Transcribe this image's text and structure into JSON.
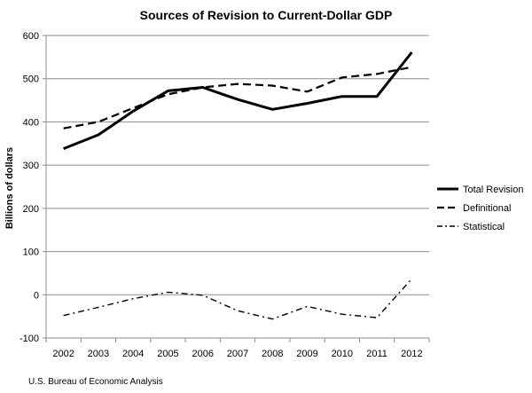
{
  "chart_data": {
    "type": "line",
    "title": "Sources of Revision to Current-Dollar GDP",
    "xlabel": "",
    "ylabel": "Billions of dollars",
    "ylim": [
      -100,
      600
    ],
    "yticks": [
      -100,
      0,
      100,
      200,
      300,
      400,
      500,
      600
    ],
    "categories": [
      "2002",
      "2003",
      "2004",
      "2005",
      "2006",
      "2007",
      "2008",
      "2009",
      "2010",
      "2011",
      "2012"
    ],
    "series": [
      {
        "name": "Total Revision",
        "style": "solid",
        "values": [
          338,
          370,
          425,
          472,
          480,
          452,
          429,
          443,
          459,
          459,
          561
        ]
      },
      {
        "name": "Definitional",
        "style": "dashed",
        "values": [
          385,
          400,
          432,
          464,
          480,
          488,
          484,
          470,
          503,
          511,
          527
        ]
      },
      {
        "name": "Statistical",
        "style": "dash-dot",
        "values": [
          -48,
          -29,
          -9,
          6,
          -1,
          -37,
          -56,
          -27,
          -45,
          -53,
          37
        ]
      }
    ],
    "legend_position": "right",
    "grid": true
  },
  "footer": {
    "source": "U.S. Bureau of Economic Analysis"
  }
}
